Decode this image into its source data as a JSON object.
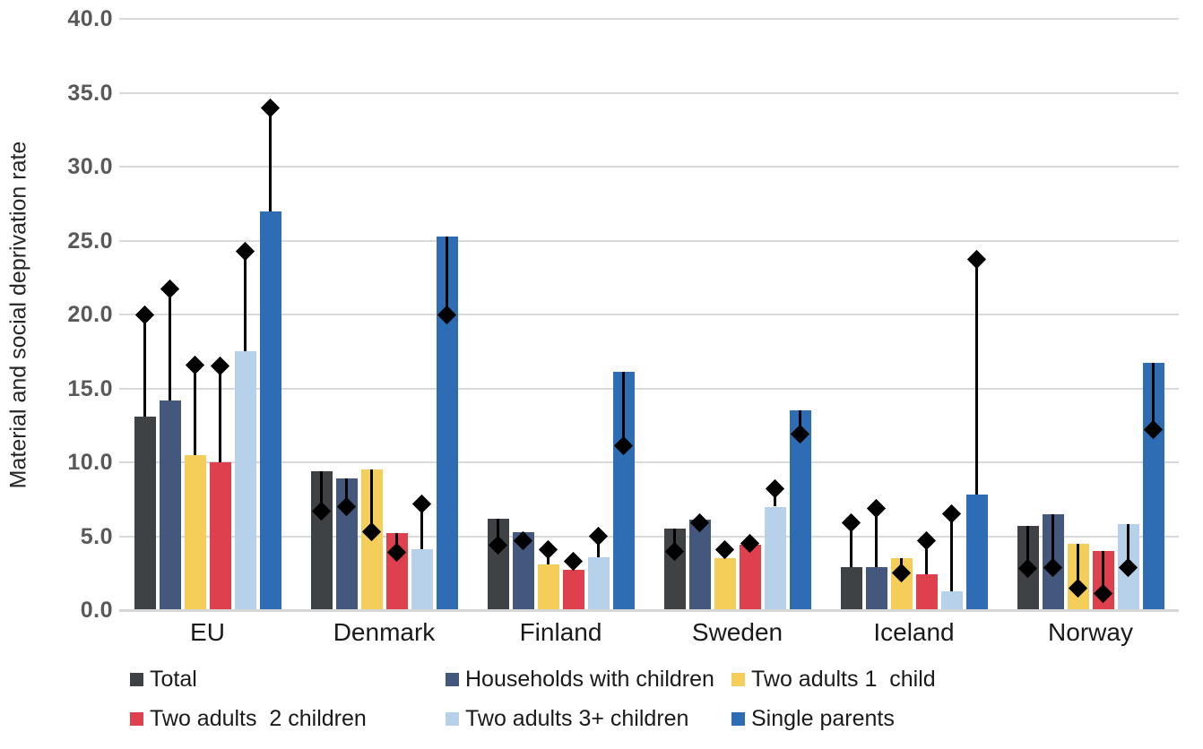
{
  "chart_data": {
    "type": "bar",
    "title": "",
    "xlabel": "",
    "ylabel": "Material and social deprivation rate",
    "ylim": [
      0,
      40
    ],
    "ytick_step": 5,
    "yticks": [
      "40.0",
      "35.0",
      "30.0",
      "25.0",
      "20.0",
      "15.0",
      "10.0",
      "5.0",
      "0.0"
    ],
    "grid": "horizontal",
    "legend_position": "bottom",
    "marker_shape": "diamond",
    "marker_description": "black diamond connected to bar top by vertical whisker line",
    "categories": [
      "EU",
      "Denmark",
      "Finland",
      "Sweden",
      "Iceland",
      "Norway"
    ],
    "series": [
      {
        "name": "Total",
        "color": "#3F4245",
        "values": [
          13.1,
          9.4,
          6.2,
          5.5,
          2.9,
          5.7
        ],
        "markers": [
          20.0,
          6.7,
          4.4,
          4.0,
          5.9,
          2.8
        ]
      },
      {
        "name": "Households with children",
        "color": "#44587E",
        "values": [
          14.2,
          8.9,
          5.3,
          6.1,
          2.9,
          6.5
        ],
        "markers": [
          21.7,
          7.0,
          4.7,
          5.9,
          6.9,
          2.9
        ]
      },
      {
        "name": "Two adults 1  child",
        "color": "#F5CE5A",
        "values": [
          10.5,
          9.5,
          3.1,
          3.5,
          3.5,
          4.5
        ],
        "markers": [
          16.6,
          5.3,
          4.1,
          4.1,
          2.5,
          1.5
        ]
      },
      {
        "name": "Two adults  2 children",
        "color": "#DE404D",
        "values": [
          10.0,
          5.2,
          2.7,
          4.4,
          2.4,
          4.0
        ],
        "markers": [
          16.5,
          3.9,
          3.3,
          4.5,
          4.7,
          1.1
        ]
      },
      {
        "name": "Two adults 3+ children",
        "color": "#B8D1EB",
        "values": [
          17.5,
          4.1,
          3.6,
          7.0,
          1.3,
          5.8
        ],
        "markers": [
          24.3,
          7.2,
          5.0,
          8.2,
          6.5,
          2.9
        ]
      },
      {
        "name": "Single parents",
        "color": "#2E6DB4",
        "values": [
          27.0,
          25.3,
          16.1,
          13.5,
          7.8,
          16.7
        ],
        "markers": [
          34.0,
          20.0,
          11.1,
          11.9,
          23.7,
          12.2
        ]
      }
    ],
    "legend_rows": [
      [
        0,
        1,
        2
      ],
      [
        3,
        4,
        5
      ]
    ],
    "colors": {
      "gridline": "#D9D9D9",
      "tick_label": "#595959",
      "marker": "#000000"
    }
  }
}
